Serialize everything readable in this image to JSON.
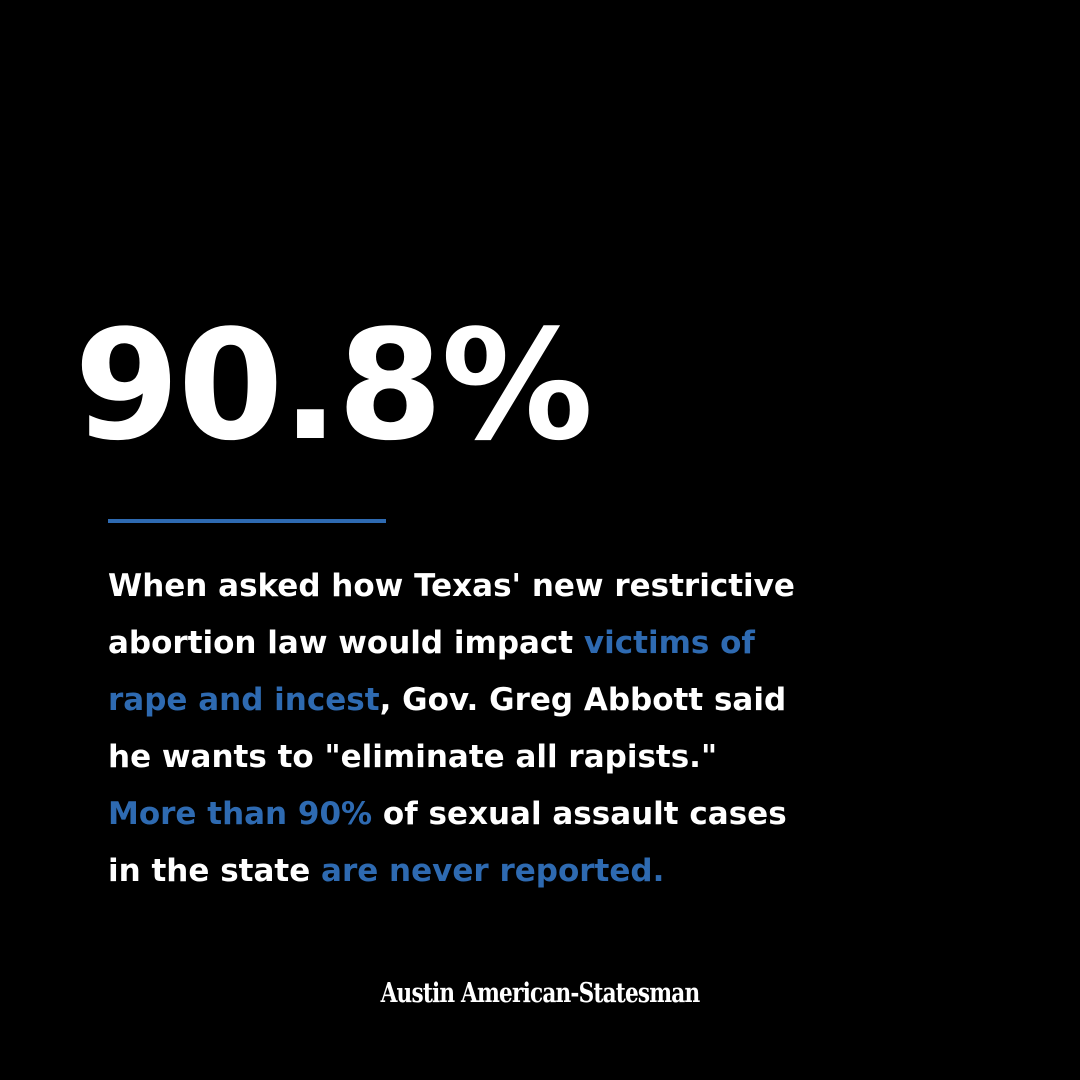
{
  "stat": {
    "value": "90.8%"
  },
  "body": {
    "line1": "When asked how Texas' new restrictive",
    "line2_a": "abortion law would impact ",
    "line2_b": "victims of",
    "line3_a": "rape and incest",
    "line3_b": ", Gov. Greg Abbott said",
    "line4": "he wants to \"eliminate all rapists.\"",
    "line5_a": "More than 90%",
    "line5_b": " of sexual assault cases",
    "line6_a": "in the state ",
    "line6_b": "are never reported."
  },
  "logo": {
    "text": "Austin American-Statesman"
  },
  "colors": {
    "background": "#000000",
    "text": "#ffffff",
    "accent": "#2e6ab1"
  }
}
